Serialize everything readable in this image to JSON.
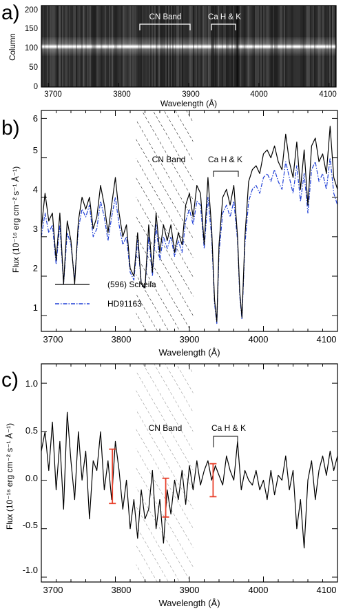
{
  "chart_data": [
    {
      "panel_label": "a)",
      "type": "heatmap",
      "xlabel": "Wavelength (Å)",
      "ylabel": "Column",
      "xlim": [
        3690,
        4110
      ],
      "ylim": [
        0,
        210
      ],
      "x_ticks": [
        "3700",
        "3800",
        "3900",
        "4000",
        "4100"
      ],
      "y_ticks": [
        "0",
        "50",
        "100",
        "150",
        "200"
      ],
      "bright_row": 100,
      "annotations": [
        {
          "text": "CN Band",
          "x0": 3828,
          "x1": 3902,
          "y": 150
        },
        {
          "text": "Ca H & K",
          "x0": 3935,
          "x1": 3971,
          "y": 150
        }
      ]
    },
    {
      "panel_label": "b)",
      "type": "line",
      "xlabel": "Wavelength (Å)",
      "ylabel": "Flux (10⁻¹⁶ erg cm⁻² s⁻¹ Å⁻¹)",
      "xlim": [
        3700,
        4100
      ],
      "ylim": [
        0.6,
        6.2
      ],
      "x_ticks": [
        "3700",
        "3800",
        "3900",
        "4000",
        "4100"
      ],
      "y_ticks": [
        "1",
        "2",
        "3",
        "4",
        "5",
        "6"
      ],
      "shaded_region": [
        3828,
        3905
      ],
      "annotations": [
        {
          "text": "CN Band",
          "x": 3866,
          "y": 4.6
        },
        {
          "text": "Ca H & K",
          "x0": 3935,
          "x1": 3971,
          "y": 4.15
        }
      ],
      "series": [
        {
          "name": "(596) Scheila",
          "style": "solid",
          "color": "#000000",
          "x": [
            3700,
            3705,
            3710,
            3715,
            3720,
            3725,
            3730,
            3735,
            3740,
            3745,
            3750,
            3755,
            3760,
            3765,
            3770,
            3775,
            3780,
            3785,
            3790,
            3795,
            3800,
            3805,
            3810,
            3815,
            3820,
            3825,
            3830,
            3835,
            3840,
            3845,
            3850,
            3855,
            3860,
            3865,
            3870,
            3875,
            3880,
            3885,
            3890,
            3895,
            3900,
            3905,
            3910,
            3915,
            3920,
            3925,
            3930,
            3934,
            3937,
            3940,
            3945,
            3950,
            3955,
            3960,
            3965,
            3968,
            3971,
            3975,
            3980,
            3985,
            3990,
            3995,
            4000,
            4005,
            4010,
            4015,
            4020,
            4025,
            4030,
            4035,
            4040,
            4045,
            4050,
            4055,
            4060,
            4065,
            4070,
            4075,
            4080,
            4085,
            4090,
            4095,
            4100
          ],
          "y": [
            3.2,
            4.1,
            3.4,
            3.6,
            2.4,
            3.6,
            1.8,
            3.4,
            2.9,
            1.8,
            3.4,
            4.0,
            3.7,
            4.0,
            3.2,
            3.5,
            4.3,
            3.8,
            3.1,
            3.8,
            4.5,
            3.6,
            3.0,
            3.3,
            2.2,
            2.0,
            3.1,
            1.8,
            1.7,
            3.3,
            2.1,
            3.6,
            2.6,
            3.3,
            2.9,
            3.3,
            2.6,
            3.1,
            2.8,
            3.8,
            4.1,
            3.5,
            4.3,
            4.1,
            2.8,
            4.5,
            3.2,
            1.4,
            0.85,
            2.8,
            4.0,
            4.2,
            3.8,
            4.3,
            3.0,
            1.6,
            0.95,
            3.0,
            4.4,
            4.7,
            4.8,
            4.6,
            5.1,
            5.2,
            5.0,
            5.3,
            4.9,
            4.7,
            5.6,
            4.9,
            4.5,
            5.4,
            4.2,
            5.2,
            3.8,
            5.3,
            5.5,
            4.9,
            5.1,
            4.6,
            5.8,
            4.5,
            4.2
          ]
        },
        {
          "name": "HD91163",
          "style": "dash-dot",
          "color": "#1f3fd6",
          "x": [
            3700,
            3705,
            3710,
            3715,
            3720,
            3725,
            3730,
            3735,
            3740,
            3745,
            3750,
            3755,
            3760,
            3765,
            3770,
            3775,
            3780,
            3785,
            3790,
            3795,
            3800,
            3805,
            3810,
            3815,
            3820,
            3825,
            3830,
            3835,
            3840,
            3845,
            3850,
            3855,
            3860,
            3865,
            3870,
            3875,
            3880,
            3885,
            3890,
            3895,
            3900,
            3905,
            3910,
            3915,
            3920,
            3925,
            3930,
            3934,
            3937,
            3940,
            3945,
            3950,
            3955,
            3960,
            3965,
            3968,
            3971,
            3975,
            3980,
            3985,
            3990,
            3995,
            4000,
            4005,
            4010,
            4015,
            4020,
            4025,
            4030,
            4035,
            4040,
            4045,
            4050,
            4055,
            4060,
            4065,
            4070,
            4075,
            4080,
            4085,
            4090,
            4095,
            4100
          ],
          "y": [
            3.0,
            3.6,
            3.1,
            3.3,
            2.3,
            3.3,
            1.8,
            3.1,
            2.8,
            1.9,
            3.2,
            3.7,
            3.5,
            3.8,
            3.0,
            3.2,
            3.9,
            3.5,
            2.9,
            3.5,
            4.0,
            3.3,
            2.8,
            3.0,
            2.1,
            1.9,
            2.9,
            1.8,
            1.7,
            3.0,
            2.0,
            3.3,
            2.4,
            3.0,
            2.7,
            3.0,
            2.5,
            2.9,
            2.6,
            3.4,
            3.7,
            3.3,
            3.9,
            3.8,
            2.7,
            4.0,
            3.0,
            1.3,
            0.8,
            2.6,
            3.6,
            3.8,
            3.5,
            3.9,
            2.9,
            1.5,
            0.9,
            2.8,
            3.9,
            4.2,
            4.3,
            4.1,
            4.5,
            4.6,
            4.4,
            4.7,
            4.4,
            4.2,
            4.9,
            4.5,
            4.1,
            4.8,
            3.9,
            4.6,
            3.6,
            4.7,
            4.9,
            4.4,
            4.6,
            4.2,
            5.0,
            4.1,
            3.8
          ]
        }
      ]
    },
    {
      "panel_label": "c)",
      "type": "line",
      "xlabel": "Wavelength (Å)",
      "ylabel": "Flux (10⁻¹⁶ erg cm⁻² s⁻¹ Å⁻¹)",
      "xlim": [
        3700,
        4100
      ],
      "ylim": [
        -1.05,
        1.2
      ],
      "x_ticks": [
        "3700",
        "3800",
        "3900",
        "4000",
        "4100"
      ],
      "y_ticks": [
        "-1.0",
        "-0.5",
        "0.0",
        "0.5",
        "1.0"
      ],
      "shaded_region": [
        3828,
        3905
      ],
      "annotations": [
        {
          "text": "CN Band",
          "x": 3866,
          "y": 0.6
        },
        {
          "text": "Ca H & K",
          "x0": 3935,
          "x1": 3971,
          "y": 0.38
        }
      ],
      "error_bars": [
        {
          "x": 3796,
          "y": 0.04,
          "err": 0.28
        },
        {
          "x": 3868,
          "y": -0.18,
          "err": 0.2
        },
        {
          "x": 3932,
          "y": 0.0,
          "err": 0.17
        }
      ],
      "series": [
        {
          "name": "",
          "color": "#000000",
          "x": [
            3700,
            3705,
            3710,
            3715,
            3720,
            3725,
            3730,
            3735,
            3740,
            3745,
            3750,
            3755,
            3760,
            3765,
            3770,
            3775,
            3780,
            3785,
            3790,
            3795,
            3800,
            3805,
            3810,
            3815,
            3820,
            3825,
            3830,
            3835,
            3840,
            3845,
            3850,
            3855,
            3860,
            3865,
            3870,
            3875,
            3880,
            3885,
            3890,
            3895,
            3900,
            3905,
            3910,
            3915,
            3920,
            3925,
            3930,
            3935,
            3940,
            3945,
            3950,
            3955,
            3960,
            3965,
            3970,
            3975,
            3980,
            3985,
            3990,
            3995,
            4000,
            4005,
            4010,
            4015,
            4020,
            4025,
            4030,
            4035,
            4040,
            4045,
            4050,
            4055,
            4060,
            4065,
            4070,
            4075,
            4080,
            4085,
            4090,
            4095,
            4100
          ],
          "y": [
            0.3,
            0.5,
            0.1,
            0.6,
            -0.1,
            0.4,
            -0.3,
            0.7,
            0.2,
            -0.2,
            0.5,
            0.0,
            0.3,
            -0.4,
            0.2,
            0.1,
            0.5,
            -0.1,
            0.2,
            -0.2,
            0.4,
            0.1,
            -0.3,
            0.0,
            -0.5,
            -0.2,
            -0.6,
            -0.1,
            -0.4,
            -0.3,
            0.1,
            -0.5,
            -0.2,
            -0.65,
            -0.1,
            -0.35,
            0.0,
            -0.2,
            0.1,
            -0.25,
            0.15,
            -0.1,
            0.2,
            -0.05,
            0.1,
            0.2,
            0.0,
            0.15,
            0.05,
            -0.05,
            0.25,
            0.1,
            0.0,
            0.4,
            -0.1,
            0.1,
            0.0,
            -0.05,
            0.1,
            -0.1,
            0.0,
            -0.2,
            0.1,
            -0.15,
            0.05,
            0.0,
            0.25,
            -0.1,
            0.1,
            -0.5,
            -0.2,
            -0.7,
            0.0,
            0.2,
            -0.2,
            0.1,
            0.25,
            0.05,
            0.3,
            0.1,
            0.25
          ]
        }
      ]
    }
  ]
}
